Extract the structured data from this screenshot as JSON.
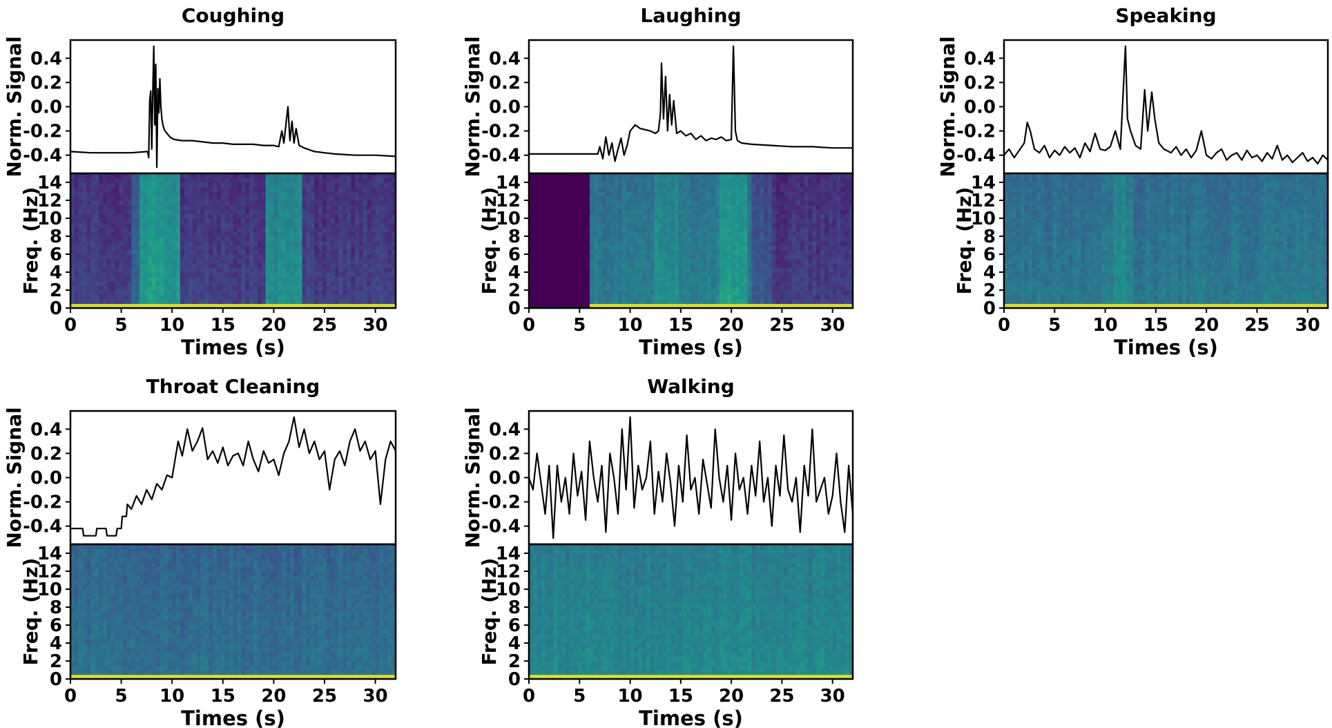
{
  "chart_data": [
    {
      "type": "line",
      "title": "Coughing",
      "signal_ylabel": "Norm. Signal",
      "spec_ylabel": "Freq. (Hz)",
      "xlabel": "Times (s)",
      "xlim": [
        0,
        32
      ],
      "signal_ylim": [
        -0.55,
        0.55
      ],
      "freq_ylim": [
        0,
        15
      ],
      "x_ticks": [
        0,
        5,
        10,
        15,
        20,
        25,
        30
      ],
      "x_tick_labels": [
        "0",
        "5",
        "10",
        "15",
        "20",
        "25",
        "30"
      ],
      "signal_ticks": [
        -0.4,
        -0.2,
        0.0,
        0.2,
        0.4
      ],
      "signal_tick_labels": [
        "-0.4",
        "-0.2",
        "0.0",
        "0.2",
        "0.4"
      ],
      "freq_ticks": [
        0,
        2,
        4,
        6,
        8,
        10,
        12,
        14
      ],
      "freq_tick_labels": [
        "0",
        "2",
        "4",
        "6",
        "8",
        "10",
        "12",
        "14"
      ],
      "signal": {
        "x": [
          0,
          2,
          4,
          6,
          7.6,
          7.7,
          7.8,
          7.9,
          8.0,
          8.1,
          8.2,
          8.3,
          8.4,
          8.5,
          8.6,
          8.7,
          8.8,
          8.9,
          9.0,
          9.1,
          9.2,
          9.3,
          9.5,
          9.8,
          10.2,
          11,
          12,
          13,
          14,
          15,
          16,
          17,
          18,
          19,
          20,
          20.5,
          20.8,
          21.0,
          21.2,
          21.4,
          21.6,
          21.8,
          22.0,
          22.2,
          22.5,
          23,
          24,
          25,
          26,
          28,
          30,
          32
        ],
        "y": [
          -0.37,
          -0.38,
          -0.38,
          -0.38,
          -0.37,
          -0.42,
          0.05,
          0.13,
          -0.35,
          0.1,
          0.5,
          -0.15,
          0.35,
          -0.5,
          0.15,
          -0.05,
          0.23,
          0.0,
          -0.1,
          -0.15,
          -0.18,
          -0.2,
          -0.22,
          -0.25,
          -0.27,
          -0.28,
          -0.28,
          -0.29,
          -0.3,
          -0.3,
          -0.31,
          -0.31,
          -0.31,
          -0.32,
          -0.32,
          -0.33,
          -0.2,
          -0.3,
          -0.15,
          0.0,
          -0.28,
          -0.12,
          -0.3,
          -0.18,
          -0.32,
          -0.34,
          -0.37,
          -0.38,
          -0.39,
          -0.4,
          -0.4,
          -0.41
        ]
      },
      "spectrogram": {
        "base": 0.18,
        "bands": [
          {
            "x0": 6.2,
            "x1": 6.8,
            "level": 0.35
          },
          {
            "x0": 6.8,
            "x1": 10.8,
            "level": 0.62
          },
          {
            "x0": 19.3,
            "x1": 23.0,
            "level": 0.55
          }
        ]
      }
    },
    {
      "type": "line",
      "title": "Laughing",
      "signal_ylabel": "Norm. Signal",
      "spec_ylabel": "Freq. (Hz)",
      "xlabel": "Times (s)",
      "xlim": [
        0,
        32
      ],
      "signal_ylim": [
        -0.55,
        0.55
      ],
      "freq_ylim": [
        0,
        15
      ],
      "x_ticks": [
        0,
        5,
        10,
        15,
        20,
        25,
        30
      ],
      "x_tick_labels": [
        "0",
        "5",
        "10",
        "15",
        "20",
        "25",
        "30"
      ],
      "signal_ticks": [
        -0.4,
        -0.2,
        0.0,
        0.2,
        0.4
      ],
      "signal_tick_labels": [
        "-0.4",
        "-0.2",
        "0.0",
        "0.2",
        "0.4"
      ],
      "freq_ticks": [
        0,
        2,
        4,
        6,
        8,
        10,
        12,
        14
      ],
      "freq_tick_labels": [
        "0",
        "2",
        "4",
        "6",
        "8",
        "10",
        "12",
        "14"
      ],
      "signal": {
        "x": [
          0,
          2,
          4,
          6,
          6.8,
          7.0,
          7.3,
          7.6,
          7.9,
          8.2,
          8.5,
          8.8,
          9.1,
          9.4,
          9.7,
          10,
          10.5,
          11,
          11.5,
          12,
          12.5,
          12.8,
          13.0,
          13.1,
          13.3,
          13.5,
          13.7,
          13.9,
          14.1,
          14.3,
          14.6,
          15,
          15.5,
          16,
          16.5,
          17,
          17.5,
          18,
          18.5,
          19,
          19.5,
          20.0,
          20.2,
          20.4,
          20.6,
          21,
          22,
          24,
          26,
          28,
          30,
          32
        ],
        "y": [
          -0.39,
          -0.39,
          -0.39,
          -0.39,
          -0.39,
          -0.33,
          -0.43,
          -0.25,
          -0.4,
          -0.3,
          -0.45,
          -0.35,
          -0.26,
          -0.4,
          -0.32,
          -0.2,
          -0.15,
          -0.18,
          -0.19,
          -0.2,
          -0.22,
          -0.2,
          -0.05,
          0.36,
          -0.1,
          0.25,
          -0.2,
          0.1,
          -0.15,
          0.05,
          -0.22,
          -0.2,
          -0.24,
          -0.22,
          -0.27,
          -0.24,
          -0.28,
          -0.26,
          -0.27,
          -0.25,
          -0.28,
          -0.27,
          0.5,
          -0.2,
          -0.28,
          -0.3,
          -0.31,
          -0.32,
          -0.33,
          -0.33,
          -0.34,
          -0.34
        ]
      },
      "spectrogram": {
        "base": 0.0,
        "bands": [
          {
            "x0": 6.0,
            "x1": 22.0,
            "level": 0.46
          },
          {
            "x0": 12.5,
            "x1": 15.0,
            "level": 0.56
          },
          {
            "x0": 19.0,
            "x1": 21.5,
            "level": 0.62
          },
          {
            "x0": 22.0,
            "x1": 24.0,
            "level": 0.28
          },
          {
            "x0": 24.0,
            "x1": 32.0,
            "level": 0.16
          }
        ]
      }
    },
    {
      "type": "line",
      "title": "Speaking",
      "signal_ylabel": "Norm. Signal",
      "spec_ylabel": "Freq. (Hz)",
      "xlabel": "Times (s)",
      "xlim": [
        0,
        32
      ],
      "signal_ylim": [
        -0.55,
        0.55
      ],
      "freq_ylim": [
        0,
        15
      ],
      "x_ticks": [
        0,
        5,
        10,
        15,
        20,
        25,
        30
      ],
      "x_tick_labels": [
        "0",
        "5",
        "10",
        "15",
        "20",
        "25",
        "30"
      ],
      "signal_ticks": [
        -0.4,
        -0.2,
        0.0,
        0.2,
        0.4
      ],
      "signal_tick_labels": [
        "-0.4",
        "-0.2",
        "0.0",
        "0.2",
        "0.4"
      ],
      "freq_ticks": [
        0,
        2,
        4,
        6,
        8,
        10,
        12,
        14
      ],
      "freq_tick_labels": [
        "0",
        "2",
        "4",
        "6",
        "8",
        "10",
        "12",
        "14"
      ],
      "signal": {
        "x": [
          0,
          0.5,
          1,
          1.5,
          2,
          2.3,
          2.6,
          3,
          3.5,
          4,
          4.5,
          5,
          5.5,
          6,
          6.5,
          7,
          7.5,
          8,
          8.5,
          9,
          9.5,
          10,
          10.5,
          11,
          11.5,
          12,
          12.2,
          12.5,
          13,
          13.5,
          13.9,
          14.2,
          14.6,
          14.9,
          15.3,
          15.8,
          16.5,
          17,
          17.5,
          18,
          18.5,
          19,
          19.5,
          20,
          20.5,
          21,
          21.5,
          22,
          22.5,
          23,
          23.5,
          24,
          24.5,
          25,
          25.5,
          26,
          26.5,
          27,
          27.5,
          28,
          28.5,
          29,
          29.5,
          30,
          30.5,
          31,
          31.5,
          32
        ],
        "y": [
          -0.4,
          -0.35,
          -0.42,
          -0.36,
          -0.3,
          -0.13,
          -0.2,
          -0.35,
          -0.38,
          -0.32,
          -0.42,
          -0.36,
          -0.4,
          -0.33,
          -0.38,
          -0.34,
          -0.42,
          -0.3,
          -0.37,
          -0.22,
          -0.35,
          -0.36,
          -0.33,
          -0.2,
          -0.35,
          0.5,
          -0.1,
          -0.2,
          -0.32,
          -0.35,
          0.14,
          -0.2,
          0.12,
          -0.1,
          -0.3,
          -0.35,
          -0.38,
          -0.33,
          -0.4,
          -0.35,
          -0.42,
          -0.36,
          -0.2,
          -0.4,
          -0.43,
          -0.38,
          -0.35,
          -0.44,
          -0.4,
          -0.38,
          -0.44,
          -0.36,
          -0.42,
          -0.4,
          -0.45,
          -0.38,
          -0.43,
          -0.32,
          -0.44,
          -0.4,
          -0.46,
          -0.42,
          -0.38,
          -0.45,
          -0.42,
          -0.47,
          -0.4,
          -0.44
        ]
      },
      "spectrogram": {
        "base": 0.44,
        "bands": [
          {
            "x0": 11.0,
            "x1": 13.0,
            "level": 0.54
          }
        ]
      }
    },
    {
      "type": "line",
      "title": "Throat Cleaning",
      "signal_ylabel": "Norm. Signal",
      "spec_ylabel": "Freq. (Hz)",
      "xlabel": "Times (s)",
      "xlim": [
        0,
        32
      ],
      "signal_ylim": [
        -0.55,
        0.55
      ],
      "freq_ylim": [
        0,
        15
      ],
      "x_ticks": [
        0,
        5,
        10,
        15,
        20,
        25,
        30
      ],
      "x_tick_labels": [
        "0",
        "5",
        "10",
        "15",
        "20",
        "25",
        "30"
      ],
      "signal_ticks": [
        -0.4,
        -0.2,
        0.0,
        0.2,
        0.4
      ],
      "signal_tick_labels": [
        "-0.4",
        "-0.2",
        "0.0",
        "0.2",
        "0.4"
      ],
      "freq_ticks": [
        0,
        2,
        4,
        6,
        8,
        10,
        12,
        14
      ],
      "freq_tick_labels": [
        "0",
        "2",
        "4",
        "6",
        "8",
        "10",
        "12",
        "14"
      ],
      "signal": {
        "x": [
          0,
          1.2,
          1.3,
          2.5,
          2.6,
          3.5,
          3.6,
          4.5,
          4.6,
          5.0,
          5.1,
          5.5,
          5.6,
          6.0,
          6.5,
          7.0,
          7.5,
          8.0,
          8.5,
          9.0,
          9.5,
          10.0,
          10.3,
          10.6,
          11.0,
          11.5,
          12.0,
          12.5,
          13.0,
          13.5,
          14.0,
          14.5,
          15.0,
          15.5,
          16.0,
          16.5,
          17.0,
          17.5,
          18.0,
          18.5,
          19.0,
          19.5,
          20.0,
          20.5,
          21.0,
          21.5,
          22.0,
          22.5,
          23.0,
          23.5,
          24.0,
          24.5,
          25.0,
          25.5,
          26.0,
          26.5,
          27.0,
          27.5,
          28.0,
          28.5,
          29.0,
          29.5,
          30.0,
          30.5,
          31.0,
          31.5,
          32.0
        ],
        "y": [
          -0.42,
          -0.42,
          -0.48,
          -0.48,
          -0.42,
          -0.42,
          -0.48,
          -0.48,
          -0.42,
          -0.42,
          -0.32,
          -0.32,
          -0.22,
          -0.26,
          -0.15,
          -0.22,
          -0.1,
          -0.18,
          -0.05,
          -0.1,
          0.02,
          0.0,
          0.15,
          0.3,
          0.18,
          0.4,
          0.22,
          0.3,
          0.41,
          0.15,
          0.22,
          0.12,
          0.25,
          0.1,
          0.18,
          0.2,
          0.1,
          0.3,
          0.15,
          0.05,
          0.22,
          0.12,
          0.15,
          0.02,
          0.2,
          0.3,
          0.5,
          0.25,
          0.4,
          0.2,
          0.3,
          0.15,
          0.22,
          -0.1,
          0.15,
          0.22,
          0.1,
          0.3,
          0.4,
          0.22,
          0.3,
          0.15,
          0.22,
          -0.22,
          0.15,
          0.3,
          0.22
        ]
      },
      "spectrogram": {
        "base": 0.4,
        "bands": []
      }
    },
    {
      "type": "line",
      "title": "Walking",
      "signal_ylabel": "Norm. Signal",
      "spec_ylabel": "Freq. (Hz)",
      "xlabel": "Times (s)",
      "xlim": [
        0,
        32
      ],
      "signal_ylim": [
        -0.55,
        0.55
      ],
      "freq_ylim": [
        0,
        15
      ],
      "x_ticks": [
        0,
        5,
        10,
        15,
        20,
        25,
        30
      ],
      "x_tick_labels": [
        "0",
        "5",
        "10",
        "15",
        "20",
        "25",
        "30"
      ],
      "signal_ticks": [
        -0.4,
        -0.2,
        0.0,
        0.2,
        0.4
      ],
      "signal_tick_labels": [
        "-0.4",
        "-0.2",
        "0.0",
        "0.2",
        "0.4"
      ],
      "freq_ticks": [
        0,
        2,
        4,
        6,
        8,
        10,
        12,
        14
      ],
      "freq_tick_labels": [
        "0",
        "2",
        "4",
        "6",
        "8",
        "10",
        "12",
        "14"
      ],
      "signal": {
        "x": [
          0,
          0.4,
          0.8,
          1.2,
          1.6,
          2.0,
          2.4,
          2.8,
          3.2,
          3.6,
          4.0,
          4.4,
          4.8,
          5.2,
          5.6,
          6.0,
          6.4,
          6.8,
          7.2,
          7.6,
          8.0,
          8.4,
          8.8,
          9.2,
          9.6,
          10.0,
          10.4,
          10.8,
          11.2,
          11.6,
          12.0,
          12.4,
          12.8,
          13.2,
          13.6,
          14.0,
          14.4,
          14.8,
          15.2,
          15.6,
          16.0,
          16.4,
          16.8,
          17.2,
          17.6,
          18.0,
          18.4,
          18.8,
          19.2,
          19.6,
          20.0,
          20.4,
          20.8,
          21.2,
          21.6,
          22.0,
          22.4,
          22.8,
          23.2,
          23.6,
          24.0,
          24.4,
          24.8,
          25.2,
          25.6,
          26.0,
          26.4,
          26.8,
          27.2,
          27.6,
          28.0,
          28.4,
          28.8,
          29.2,
          29.6,
          30.0,
          30.4,
          30.8,
          31.2,
          31.6,
          32.0
        ],
        "y": [
          0.0,
          -0.1,
          0.2,
          -0.05,
          -0.3,
          0.1,
          -0.5,
          0.1,
          -0.2,
          0.0,
          -0.3,
          0.2,
          -0.15,
          0.05,
          -0.35,
          0.3,
          0.0,
          -0.2,
          0.1,
          -0.45,
          0.2,
          0.0,
          -0.3,
          0.4,
          -0.1,
          0.5,
          -0.25,
          0.1,
          -0.1,
          0.0,
          0.3,
          -0.3,
          0.05,
          -0.2,
          0.2,
          -0.05,
          -0.4,
          0.1,
          -0.2,
          0.35,
          -0.1,
          0.0,
          -0.3,
          0.15,
          -0.05,
          -0.25,
          0.4,
          0.0,
          -0.2,
          0.1,
          -0.35,
          0.2,
          -0.1,
          0.0,
          -0.3,
          0.1,
          -0.15,
          0.3,
          -0.2,
          0.0,
          -0.4,
          0.1,
          -0.15,
          0.35,
          -0.1,
          -0.2,
          0.0,
          -0.45,
          0.1,
          -0.15,
          0.4,
          -0.2,
          -0.1,
          0.0,
          -0.3,
          -0.15,
          0.2,
          -0.2,
          -0.45,
          0.1,
          -0.3
        ]
      },
      "spectrogram": {
        "base": 0.52,
        "bands": []
      }
    }
  ]
}
